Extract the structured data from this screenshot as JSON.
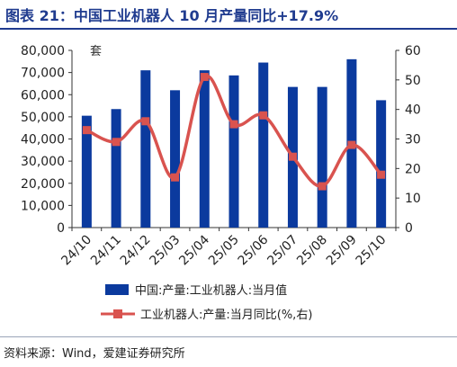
{
  "title": "图表 21：中国工业机器人 10 月产量同比+17.9%",
  "source": "资料来源：Wind，爱建证券研究所",
  "colors": {
    "bar": "#0b3a9e",
    "line": "#d9534f",
    "title": "#1f3b8f"
  },
  "chart_data": {
    "type": "bar+line",
    "categories": [
      "24/10",
      "24/11",
      "24/12",
      "25/03",
      "25/04",
      "25/05",
      "25/06",
      "25/07",
      "25/08",
      "25/09",
      "25/10"
    ],
    "y_left": {
      "unit_label": "套",
      "range": [
        0,
        80000
      ],
      "ticks": [
        "0",
        "10,000",
        "20,000",
        "30,000",
        "40,000",
        "50,000",
        "60,000",
        "70,000",
        "80,000"
      ]
    },
    "y_right": {
      "range": [
        0,
        60
      ],
      "ticks": [
        "0",
        "10",
        "20",
        "30",
        "40",
        "50",
        "60"
      ]
    },
    "series": [
      {
        "name": "中国:产量:工业机器人:当月值",
        "type": "bar",
        "axis": "left",
        "values": [
          50500,
          53500,
          71000,
          62000,
          71000,
          68700,
          74500,
          63500,
          63500,
          76000,
          57500
        ]
      },
      {
        "name": "工业机器人:产量:当月同比(%,右)",
        "type": "line",
        "axis": "right",
        "values": [
          33,
          29,
          36,
          17,
          51,
          35,
          38,
          24,
          14,
          28,
          17.9
        ]
      }
    ],
    "legend_position": "bottom",
    "grid": false
  }
}
